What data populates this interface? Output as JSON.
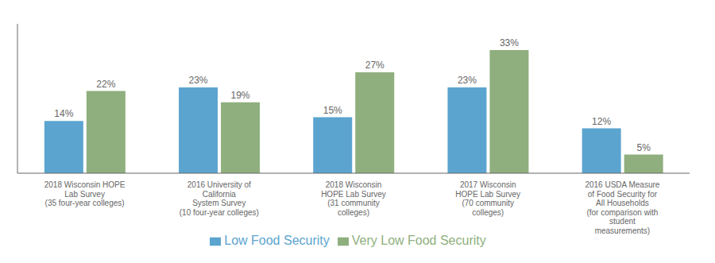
{
  "chart_data": {
    "type": "bar",
    "categories": [
      "2018 Wisconsin HOPE\nLab Survey\n(35 four-year colleges)",
      "2016 University of\nCalifornia\nSystem Survey\n(10 four-year colleges)",
      "2018 Wisconsin\nHOPE Lab Survey\n(31 community\ncolleges)",
      "2017 Wisconsin\nHOPE Lab Survey\n(70 community\ncolleges)",
      "2016 USDA Measure\nof Food Security for\nAll Households\n(for comparison with\nstudent\nmeasurements)"
    ],
    "series": [
      {
        "name": "Low Food Security",
        "color": "#5BA4CF",
        "values": [
          14,
          23,
          15,
          23,
          12
        ],
        "value_labels": [
          "14%",
          "23%",
          "15%",
          "23%",
          "12%"
        ]
      },
      {
        "name": "Very Low Food Security",
        "color": "#8FAF7E",
        "values": [
          22,
          19,
          27,
          33,
          5
        ],
        "value_labels": [
          "22%",
          "19%",
          "27%",
          "33%",
          "5%"
        ]
      }
    ],
    "ylim": [
      0,
      40
    ],
    "grid": false,
    "legend": "bottom",
    "data_labels": true,
    "tick_labels": "x"
  }
}
